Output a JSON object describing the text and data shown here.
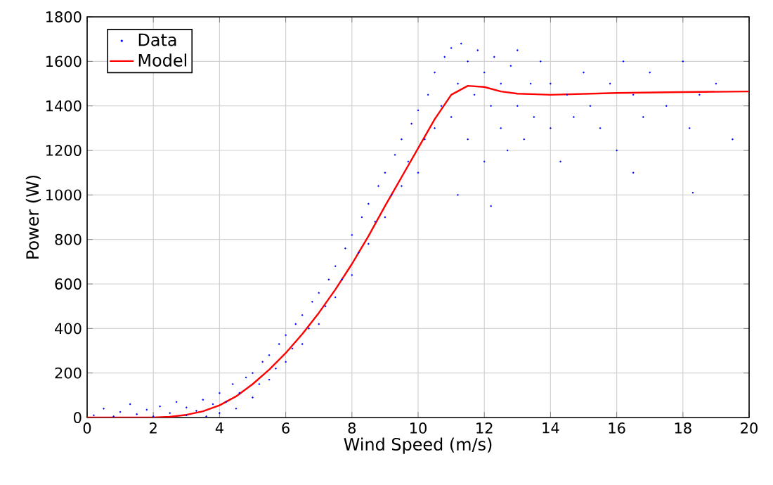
{
  "chart_data": {
    "type": "scatter",
    "xlabel": "Wind Speed (m/s)",
    "ylabel": "Power (W)",
    "xlim": [
      0,
      20
    ],
    "xticks": [
      0,
      2,
      4,
      6,
      8,
      10,
      12,
      14,
      16,
      18,
      20
    ],
    "ylim": [
      0,
      1800
    ],
    "yticks": [
      0,
      200,
      400,
      600,
      800,
      1000,
      1200,
      1400,
      1600,
      1800
    ],
    "grid": true,
    "legend": "top left",
    "series": [
      {
        "name": "Data",
        "color": "#0000ff",
        "marker": "circle",
        "x": [
          0.2,
          0.5,
          0.8,
          1.0,
          1.3,
          1.5,
          1.8,
          2.0,
          2.2,
          2.5,
          2.7,
          3.0,
          3.0,
          3.3,
          3.5,
          3.6,
          3.8,
          4.0,
          4.0,
          4.2,
          4.4,
          4.5,
          4.6,
          4.8,
          5.0,
          5.0,
          5.2,
          5.3,
          5.5,
          5.5,
          5.7,
          5.8,
          6.0,
          6.0,
          6.2,
          6.3,
          6.5,
          6.5,
          6.7,
          6.8,
          7.0,
          7.0,
          7.2,
          7.3,
          7.5,
          7.5,
          7.7,
          7.8,
          8.0,
          8.0,
          8.2,
          8.3,
          8.5,
          8.5,
          8.7,
          8.8,
          9.0,
          9.0,
          9.2,
          9.3,
          9.5,
          9.5,
          9.7,
          9.8,
          10.0,
          10.0,
          10.2,
          10.3,
          10.5,
          10.5,
          10.7,
          10.8,
          11.0,
          11.0,
          11.2,
          11.3,
          11.5,
          11.5,
          11.7,
          11.8,
          12.0,
          12.0,
          12.2,
          12.3,
          12.5,
          12.5,
          12.7,
          12.8,
          13.0,
          13.0,
          13.2,
          13.4,
          13.5,
          13.7,
          14.0,
          14.0,
          14.3,
          14.5,
          14.7,
          15.0,
          15.2,
          15.5,
          15.8,
          16.0,
          16.2,
          16.5,
          16.8,
          17.0,
          17.5,
          18.0,
          18.2,
          18.5,
          19.0,
          19.5,
          16.5,
          18.3,
          11.2,
          12.2
        ],
        "values": [
          10,
          40,
          5,
          25,
          60,
          15,
          35,
          5,
          50,
          20,
          70,
          10,
          45,
          30,
          80,
          5,
          60,
          20,
          110,
          70,
          150,
          40,
          110,
          180,
          90,
          200,
          150,
          250,
          170,
          280,
          220,
          330,
          250,
          370,
          310,
          420,
          330,
          460,
          400,
          520,
          420,
          560,
          500,
          620,
          540,
          680,
          620,
          760,
          640,
          820,
          740,
          900,
          780,
          960,
          880,
          1040,
          900,
          1100,
          1000,
          1180,
          1040,
          1250,
          1150,
          1320,
          1100,
          1380,
          1250,
          1450,
          1300,
          1550,
          1400,
          1620,
          1350,
          1660,
          1500,
          1680,
          1250,
          1600,
          1450,
          1650,
          1150,
          1550,
          1400,
          1620,
          1300,
          1500,
          1200,
          1580,
          1400,
          1650,
          1250,
          1500,
          1350,
          1600,
          1300,
          1500,
          1150,
          1450,
          1350,
          1550,
          1400,
          1300,
          1500,
          1200,
          1600,
          1450,
          1350,
          1550,
          1400,
          1600,
          1300,
          1450,
          1500,
          1250,
          1100,
          1010,
          1000,
          950
        ]
      },
      {
        "name": "Model",
        "type": "line",
        "color": "#ff0000",
        "marker": "none",
        "line_style": "solid",
        "x": [
          0,
          2,
          2.5,
          3,
          3.5,
          4,
          4.5,
          5,
          5.5,
          6,
          6.5,
          7,
          7.5,
          8,
          8.5,
          9,
          9.5,
          10,
          10.5,
          11,
          11.5,
          12,
          12.5,
          13,
          14,
          16,
          18,
          20
        ],
        "values": [
          0,
          0,
          3,
          12,
          28,
          55,
          95,
          150,
          215,
          290,
          375,
          470,
          575,
          690,
          815,
          950,
          1080,
          1210,
          1340,
          1450,
          1490,
          1485,
          1465,
          1455,
          1450,
          1458,
          1462,
          1465
        ]
      }
    ]
  }
}
